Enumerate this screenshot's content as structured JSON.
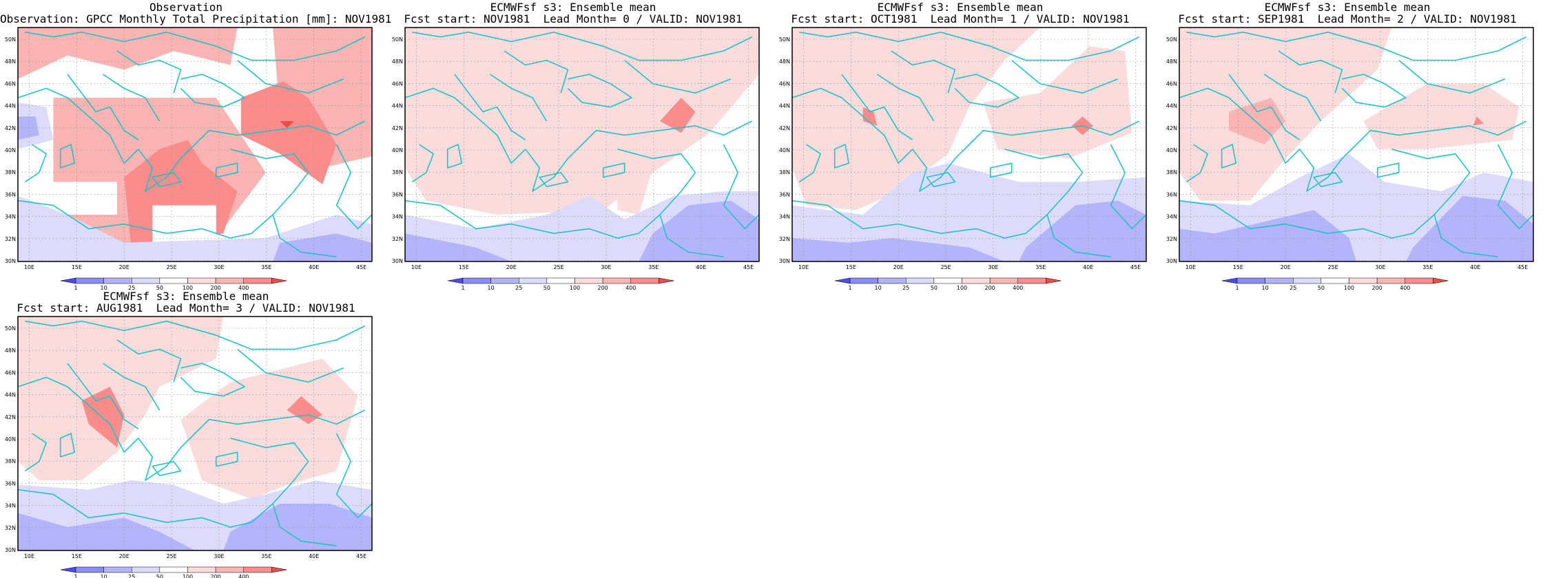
{
  "panels": [
    {
      "title1": "Observation",
      "title2": "Observation: GPCC Monthly Total Precipitation [mm]: NOV1981"
    },
    {
      "title1": "ECMWFsf s3: Ensemble mean",
      "title2": "Fcst start: NOV1981  Lead Month= 0 / VALID: NOV1981"
    },
    {
      "title1": "ECMWFsf s3: Ensemble mean",
      "title2": "Fcst start: OCT1981  Lead Month= 1 / VALID: NOV1981"
    },
    {
      "title1": "ECMWFsf s3: Ensemble mean",
      "title2": "Fcst start: SEP1981  Lead Month= 2 / VALID: NOV1981"
    },
    {
      "title1": "ECMWFsf s3: Ensemble mean",
      "title2": "Fcst start: AUG1981  Lead Month= 3 / VALID: NOV1981"
    }
  ],
  "axes": {
    "lon_ticks": [
      "10E",
      "15E",
      "20E",
      "25E",
      "30E",
      "35E",
      "40E",
      "45E"
    ],
    "lat_ticks": [
      "30N",
      "32N",
      "34N",
      "36N",
      "38N",
      "40N",
      "42N",
      "44N",
      "46N",
      "48N",
      "50N"
    ]
  },
  "colorbar": {
    "levels": [
      "1",
      "10",
      "25",
      "50",
      "100",
      "200",
      "400"
    ],
    "colors": [
      "#4b4bf0",
      "#8c8cf5",
      "#b4b4fa",
      "#dcdcfa",
      "#ffffff",
      "#fadcdc",
      "#fab4b4",
      "#fa8c8c",
      "#f04b4b"
    ]
  },
  "colors": {
    "coast": "#1fc3c8",
    "frame": "#000000",
    "grid": "#9a9a9a"
  }
}
